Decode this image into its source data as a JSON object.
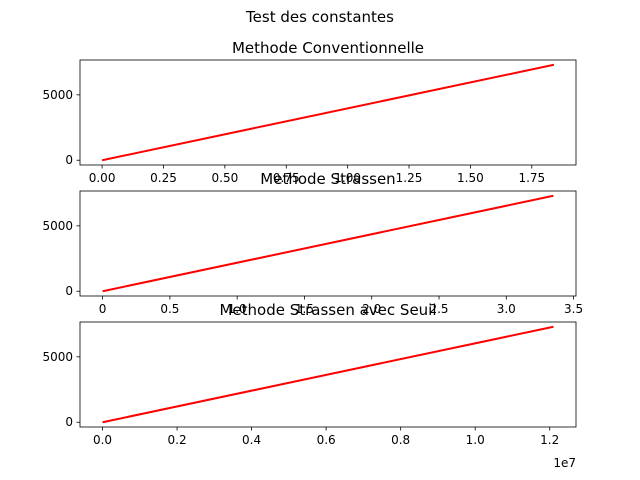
{
  "figure": {
    "suptitle": "Test des constantes"
  },
  "chart_data": [
    {
      "type": "line",
      "title": "Methode Conventionnelle",
      "xlabel": "",
      "ylabel": "",
      "offset_label": "",
      "x": [
        0,
        1.84
      ],
      "y": [
        0,
        7300
      ],
      "xlim": [
        -0.09,
        1.93
      ],
      "ylim": [
        -365,
        7665
      ],
      "xticks": [
        0.0,
        0.25,
        0.5,
        0.75,
        1.0,
        1.25,
        1.5,
        1.75
      ],
      "xtick_labels": [
        "0.00",
        "0.25",
        "0.50",
        "0.75",
        "1.00",
        "1.25",
        "1.50",
        "1.75"
      ],
      "yticks": [
        0,
        5000
      ],
      "ytick_labels": [
        "0",
        "5000"
      ],
      "color": "#ff0000",
      "grid": false
    },
    {
      "type": "line",
      "title": "Methode Strassen",
      "xlabel": "",
      "ylabel": "",
      "offset_label": "",
      "x": [
        0,
        3.35
      ],
      "y": [
        0,
        7300
      ],
      "xlim": [
        -0.168,
        3.518
      ],
      "ylim": [
        -365,
        7665
      ],
      "xticks": [
        0.0,
        0.5,
        1.0,
        1.5,
        2.0,
        2.5,
        3.0,
        3.5
      ],
      "xtick_labels": [
        "0",
        "0.5",
        "1.0",
        "1.5",
        "2.0",
        "2.5",
        "3.0",
        "3.5"
      ],
      "yticks": [
        0,
        5000
      ],
      "ytick_labels": [
        "0",
        "5000"
      ],
      "color": "#ff0000",
      "grid": false
    },
    {
      "type": "line",
      "title": "Methode Strassen avec Seuil",
      "xlabel": "",
      "ylabel": "",
      "offset_label": "1e7",
      "x": [
        0,
        1.21
      ],
      "y": [
        0,
        7300
      ],
      "xlim": [
        -0.0605,
        1.2705
      ],
      "ylim": [
        -365,
        7665
      ],
      "xticks": [
        0.0,
        0.2,
        0.4,
        0.6,
        0.8,
        1.0,
        1.2
      ],
      "xtick_labels": [
        "0.0",
        "0.2",
        "0.4",
        "0.6",
        "0.8",
        "1.0",
        "1.2"
      ],
      "yticks": [
        0,
        5000
      ],
      "ytick_labels": [
        "0",
        "5000"
      ],
      "color": "#ff0000",
      "grid": false
    }
  ]
}
